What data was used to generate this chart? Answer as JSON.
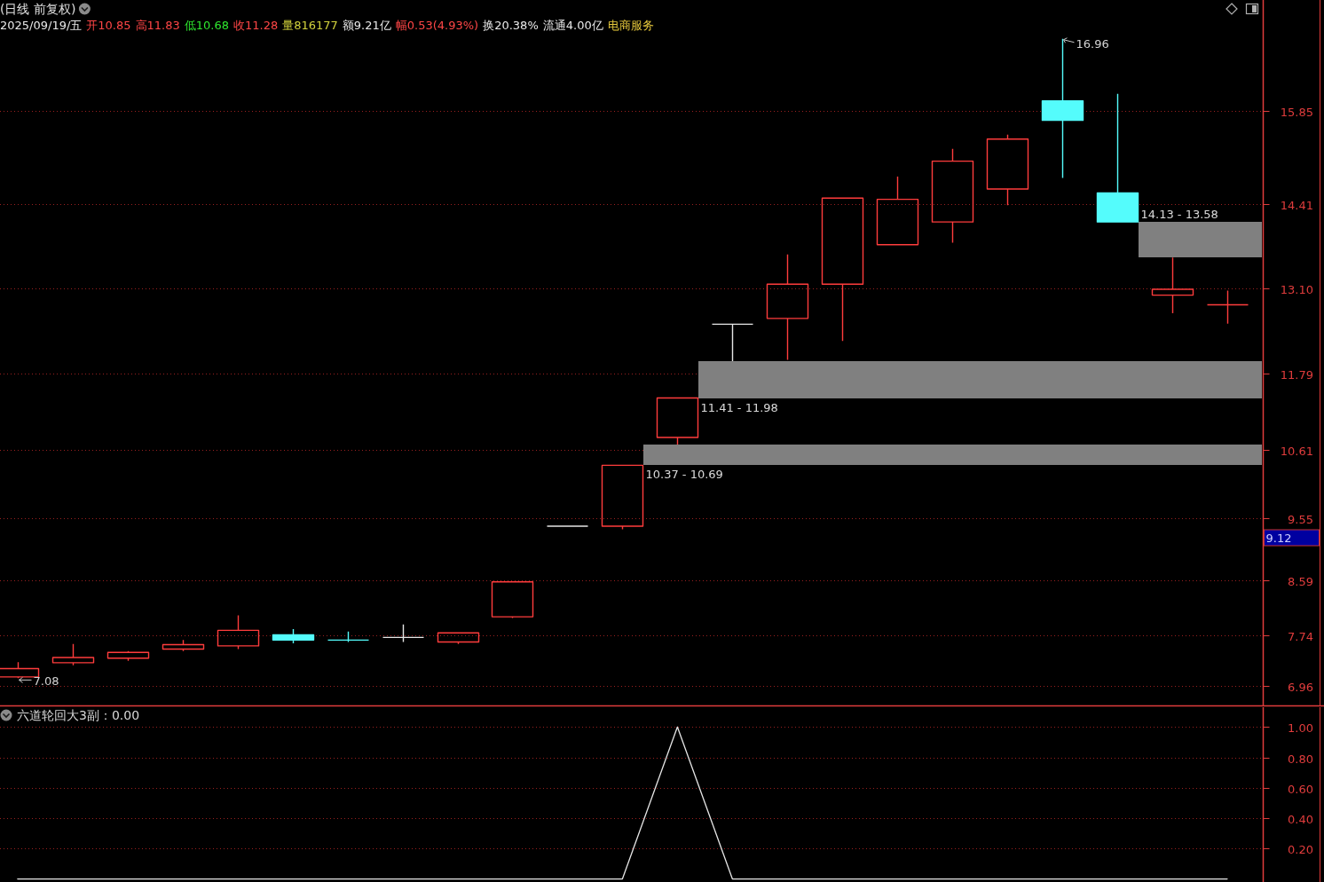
{
  "chart_data": [
    {
      "type": "candlestick",
      "title": "(日线 前复权)",
      "categories": [
        null,
        null,
        null,
        null,
        null,
        null,
        null,
        null,
        null,
        null,
        null,
        null,
        null,
        null,
        null,
        null,
        null,
        null,
        null,
        null,
        null,
        null,
        null
      ],
      "ohlc": [
        [
          7.1,
          7.33,
          7.08,
          7.23
        ],
        [
          7.32,
          7.61,
          7.28,
          7.4
        ],
        [
          7.39,
          7.5,
          7.35,
          7.48
        ],
        [
          7.53,
          7.67,
          7.5,
          7.6
        ],
        [
          7.58,
          8.05,
          7.53,
          7.82
        ],
        [
          7.75,
          7.84,
          7.62,
          7.67
        ],
        [
          7.67,
          7.8,
          7.64,
          7.66
        ],
        [
          7.71,
          7.91,
          7.64,
          7.71
        ],
        [
          7.64,
          7.78,
          7.61,
          7.78
        ],
        [
          8.03,
          8.57,
          8.01,
          8.57
        ],
        [
          9.43,
          9.43,
          9.43,
          9.43
        ],
        [
          9.43,
          10.37,
          9.38,
          10.37
        ],
        [
          10.8,
          11.41,
          10.69,
          11.41
        ],
        [
          12.55,
          12.55,
          11.98,
          12.55
        ],
        [
          12.64,
          13.63,
          12.0,
          13.17
        ],
        [
          13.17,
          14.5,
          12.29,
          14.5
        ],
        [
          13.78,
          14.83,
          13.78,
          14.48
        ],
        [
          14.13,
          15.26,
          13.81,
          15.07
        ],
        [
          14.64,
          15.48,
          14.39,
          15.41
        ],
        [
          16.0,
          16.96,
          14.81,
          15.7
        ],
        [
          14.58,
          16.11,
          14.13,
          14.13
        ],
        [
          13.0,
          13.58,
          12.72,
          13.09
        ],
        [
          12.85,
          13.07,
          12.56,
          12.85
        ]
      ],
      "colors": [
        "#ff3c3c",
        "#ff3c3c",
        "#ff3c3c",
        "#ff3c3c",
        "#ff3c3c",
        "#54fcfc",
        "#54fcfc",
        "#e6e6e6",
        "#ff3c3c",
        "#ff3c3c",
        "#e6e6e6",
        "#ff3c3c",
        "#ff3c3c",
        "#e6e6e6",
        "#ff3c3c",
        "#ff3c3c",
        "#ff3c3c",
        "#ff3c3c",
        "#ff3c3c",
        "#54fcfc",
        "#54fcfc",
        "#ff3c3c",
        "#ff3c3c"
      ],
      "bands": [
        {
          "axis": "y",
          "from": 11.41,
          "to": 11.98,
          "label": "11.41 - 11.98",
          "color": "#808080"
        },
        {
          "axis": "y",
          "from": 10.37,
          "to": 10.69,
          "label": "10.37 - 10.69",
          "color": "#808080"
        },
        {
          "axis": "y",
          "from": 14.13,
          "to": 13.58,
          "label": "14.13 - 13.58",
          "color": "#808080"
        }
      ],
      "ylim": [
        6.66,
        17.56
      ],
      "yticks": [
        6.96,
        7.74,
        8.59,
        9.55,
        10.61,
        11.79,
        {
          "value": 13.1,
          "label": "13.10"
        },
        14.41,
        15.85
      ],
      "grid": "y",
      "annotations": [
        "2025/09/19/五",
        "开10.85",
        "高11.83",
        "低10.68",
        "收11.28",
        "量816177",
        "额9.21亿",
        "幅0.53(4.93%)",
        "换20.38%",
        "流通4.00亿",
        "电商服务",
        "16.96",
        "7.08",
        "9.12"
      ]
    },
    {
      "type": "line",
      "title": "六道轮回大3副：0.00",
      "categories": [
        null,
        null,
        null,
        null,
        null,
        null,
        null,
        null,
        null,
        null,
        null,
        null,
        null,
        null,
        null,
        null,
        null,
        null,
        null,
        null,
        null,
        null,
        null
      ],
      "series": [
        {
          "color": "#e6e6e6",
          "values": [
            0,
            0,
            0,
            0,
            0,
            0,
            0,
            0,
            0,
            0,
            0,
            0,
            1,
            0,
            0,
            0,
            0,
            0,
            0,
            0,
            0,
            0,
            0
          ]
        }
      ],
      "ylim": [
        -0.02,
        1.13
      ],
      "yticks": [
        {
          "value": 1,
          "label": "1.00"
        },
        {
          "value": 0.8,
          "label": "0.80"
        },
        {
          "value": 0.6,
          "label": "0.60"
        },
        {
          "value": 0.4,
          "label": "0.40"
        },
        {
          "value": 0.2,
          "label": "0.20"
        }
      ],
      "grid": "y"
    }
  ]
}
